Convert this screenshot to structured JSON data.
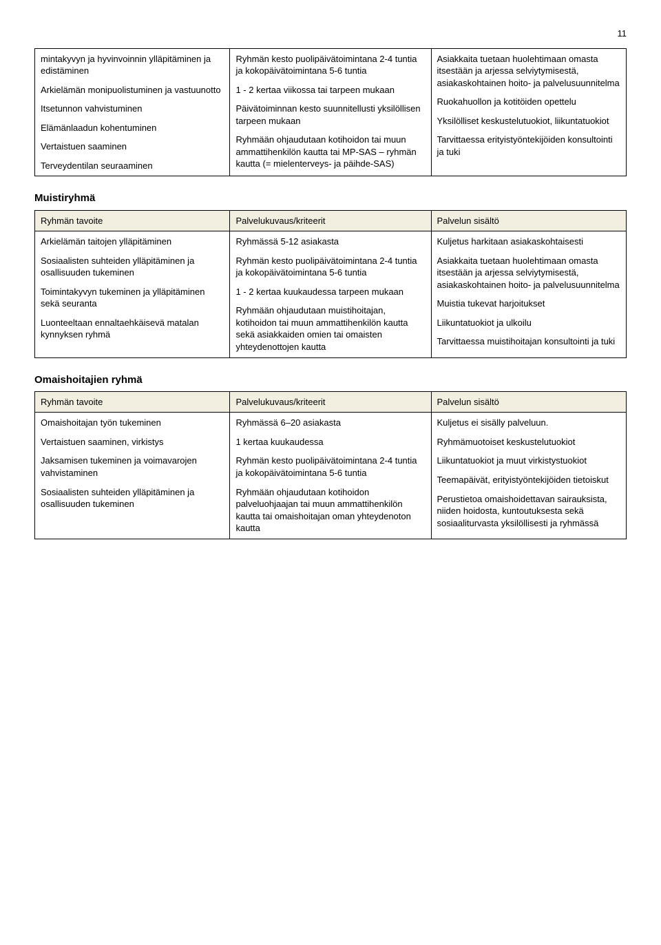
{
  "page_number": "11",
  "header_bg_color": "#f2eee0",
  "border_color": "#000000",
  "font_family": "Arial",
  "base_font_size_pt": 10,
  "top_table": {
    "row": {
      "col1": [
        "mintakyvyn ja hyvinvoinnin ylläpitäminen ja edistäminen",
        "Arkielämän monipuolistuminen ja vastuunotto",
        "Itsetunnon vahvistuminen",
        "Elämänlaadun kohentuminen",
        "Vertaistuen saaminen",
        "Terveydentilan seuraaminen"
      ],
      "col2": [
        "Ryhmän kesto puolipäivätoimintana 2-4 tuntia ja kokopäivätoimintana 5-6 tuntia",
        "1 - 2 kertaa viikossa tai tarpeen mukaan",
        "Päivätoiminnan kesto suunnitellusti yksilöllisen tarpeen mukaan",
        "Ryhmään ohjaudutaan kotihoidon tai muun ammattihenkilön kautta tai MP-SAS – ryhmän kautta (= mielenterveys- ja päihde-SAS)"
      ],
      "col3": [
        "Asiakkaita tuetaan huolehtimaan omasta itsestään ja arjessa selviytymisestä, asiakaskohtainen hoito- ja palvelusuunnitelma",
        "Ruokahuollon ja kotitöiden opettelu",
        "Yksilölliset keskustelutuokiot, liikuntatuokiot",
        "Tarvittaessa erityistyöntekijöiden konsultointi ja tuki"
      ]
    }
  },
  "sections": [
    {
      "title": "Muistiryhmä",
      "headers": [
        "Ryhmän tavoite",
        "Palvelukuvaus/kriteerit",
        "Palvelun sisältö"
      ],
      "row": {
        "col1": [
          "Arkielämän taitojen ylläpitäminen",
          "Sosiaalisten suhteiden ylläpitäminen ja osallisuuden tukeminen",
          "Toimintakyvyn tukeminen ja ylläpitäminen sekä seuranta",
          "Luonteeltaan ennaltaehkäisevä matalan kynnyksen ryhmä"
        ],
        "col2": [
          "Ryhmässä 5-12 asiakasta",
          "Ryhmän kesto puolipäivätoimintana 2-4 tuntia ja kokopäivätoimintana 5-6 tuntia",
          "1 - 2 kertaa kuukaudessa tarpeen mukaan",
          "Ryhmään ohjaudutaan muistihoitajan, kotihoidon tai muun ammattihenkilön kautta sekä asiakkaiden omien tai omaisten yhteydenottojen kautta"
        ],
        "col3": [
          "Kuljetus harkitaan asiakaskohtaisesti",
          "Asiakkaita tuetaan huolehtimaan omasta itsestään ja arjessa selviytymisestä, asiakaskohtainen hoito- ja palvelusuunnitelma",
          "Muistia tukevat harjoitukset",
          "Liikuntatuokiot ja ulkoilu",
          "Tarvittaessa muistihoitajan konsultointi ja tuki"
        ]
      }
    },
    {
      "title": "Omaishoitajien ryhmä",
      "headers": [
        "Ryhmän tavoite",
        "Palvelukuvaus/kriteerit",
        "Palvelun sisältö"
      ],
      "row": {
        "col1": [
          "Omaishoitajan työn tukeminen",
          "Vertaistuen saaminen, virkistys",
          "Jaksamisen tukeminen ja voimavarojen vahvistaminen",
          "Sosiaalisten suhteiden ylläpitäminen ja osallisuuden tukeminen"
        ],
        "col2": [
          "Ryhmässä 6–20 asiakasta",
          "1 kertaa kuukaudessa",
          "Ryhmän kesto puolipäivätoimintana 2-4 tuntia ja kokopäivätoimintana 5-6 tuntia",
          "Ryhmään ohjaudutaan kotihoidon palveluohjaajan tai muun ammattihenkilön kautta tai omaishoitajan oman yhteydenoton kautta"
        ],
        "col3": [
          "Kuljetus ei sisälly palveluun.",
          "Ryhmämuotoiset keskustelutuokiot",
          "Liikuntatuokiot ja muut virkistystuokiot",
          "Teemapäivät, erityistyöntekijöiden tietoiskut",
          "Perustietoa omaishoidettavan sairauksista, niiden hoidosta, kuntoutuksesta sekä sosiaaliturvasta yksilöllisesti ja ryhmässä"
        ]
      }
    }
  ]
}
